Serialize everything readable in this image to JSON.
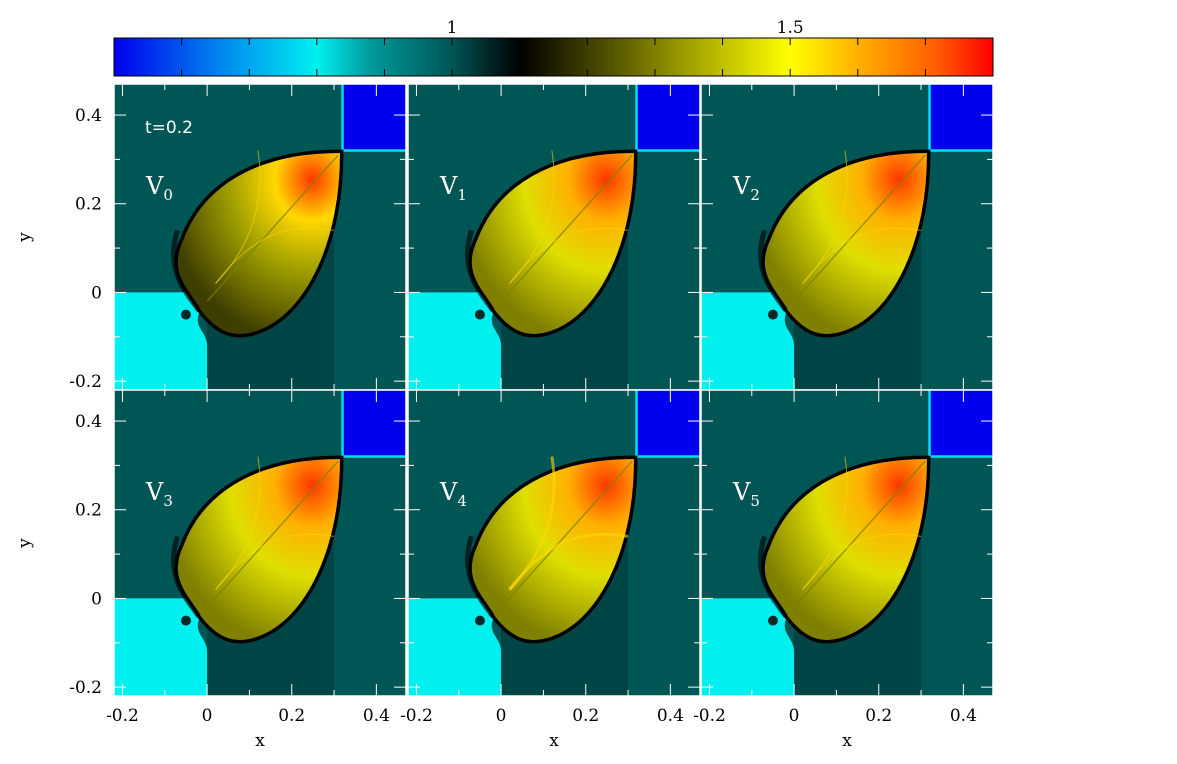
{
  "chart_data": {
    "type": "heatmap",
    "title": "",
    "annotation": "t=0.2",
    "colorbar": {
      "min": 0.5,
      "max": 1.8,
      "tick_labels": [
        {
          "value": 1,
          "label": "1"
        },
        {
          "value": 1.5,
          "label": "1.5"
        }
      ],
      "minor_ticks": [
        0.6,
        0.7,
        0.8,
        0.9,
        1.0,
        1.1,
        1.2,
        1.3,
        1.4,
        1.5,
        1.6,
        1.7
      ],
      "colormap": [
        {
          "v": 0.5,
          "color": "#0000ee"
        },
        {
          "v": 0.66,
          "color": "#0088ee"
        },
        {
          "v": 0.8,
          "color": "#00f0f0"
        },
        {
          "v": 0.88,
          "color": "#009a9a"
        },
        {
          "v": 1.0,
          "color": "#005555"
        },
        {
          "v": 1.1,
          "color": "#000000"
        },
        {
          "v": 1.22,
          "color": "#4a4a00"
        },
        {
          "v": 1.35,
          "color": "#a0a000"
        },
        {
          "v": 1.5,
          "color": "#ffff00"
        },
        {
          "v": 1.6,
          "color": "#ffb000"
        },
        {
          "v": 1.72,
          "color": "#ff5a00"
        },
        {
          "v": 1.8,
          "color": "#ff0000"
        }
      ]
    },
    "x_ticks": [
      {
        "value": -0.2,
        "label": "-0.2"
      },
      {
        "value": 0,
        "label": "0"
      },
      {
        "value": 0.2,
        "label": "0.2"
      },
      {
        "value": 0.4,
        "label": "0.4"
      }
    ],
    "y_ticks": [
      {
        "value": -0.2,
        "label": "-0.2"
      },
      {
        "value": 0,
        "label": "0"
      },
      {
        "value": 0.2,
        "label": "0.2"
      },
      {
        "value": 0.4,
        "label": "0.4"
      }
    ],
    "xlim": [
      -0.22,
      0.47
    ],
    "ylim": [
      -0.22,
      0.47
    ],
    "xlabel": "x",
    "ylabel": "y",
    "field": {
      "background": 1.0,
      "quadrant_top_right": 0.5,
      "quadrant_bottom_left": 0.8,
      "interface": 0.3,
      "jet_tip": [
        0.32,
        0.32
      ],
      "jet_base": [
        0.0,
        -0.08
      ]
    },
    "panels": [
      {
        "id": "V0",
        "name": "V",
        "sub": "0",
        "row": 0,
        "col": 0,
        "lobe_value": 1.35,
        "tip_value": 1.75
      },
      {
        "id": "V1",
        "name": "V",
        "sub": "1",
        "row": 0,
        "col": 1,
        "lobe_value": 1.45,
        "tip_value": 1.75
      },
      {
        "id": "V2",
        "name": "V",
        "sub": "2",
        "row": 0,
        "col": 2,
        "lobe_value": 1.45,
        "tip_value": 1.75
      },
      {
        "id": "V3",
        "name": "V",
        "sub": "3",
        "row": 1,
        "col": 0,
        "lobe_value": 1.45,
        "tip_value": 1.75
      },
      {
        "id": "V4",
        "name": "V",
        "sub": "4",
        "row": 1,
        "col": 1,
        "lobe_value": 1.45,
        "tip_value": 1.75
      },
      {
        "id": "V5",
        "name": "V",
        "sub": "5",
        "row": 1,
        "col": 2,
        "lobe_value": 1.45,
        "tip_value": 1.75
      }
    ]
  }
}
